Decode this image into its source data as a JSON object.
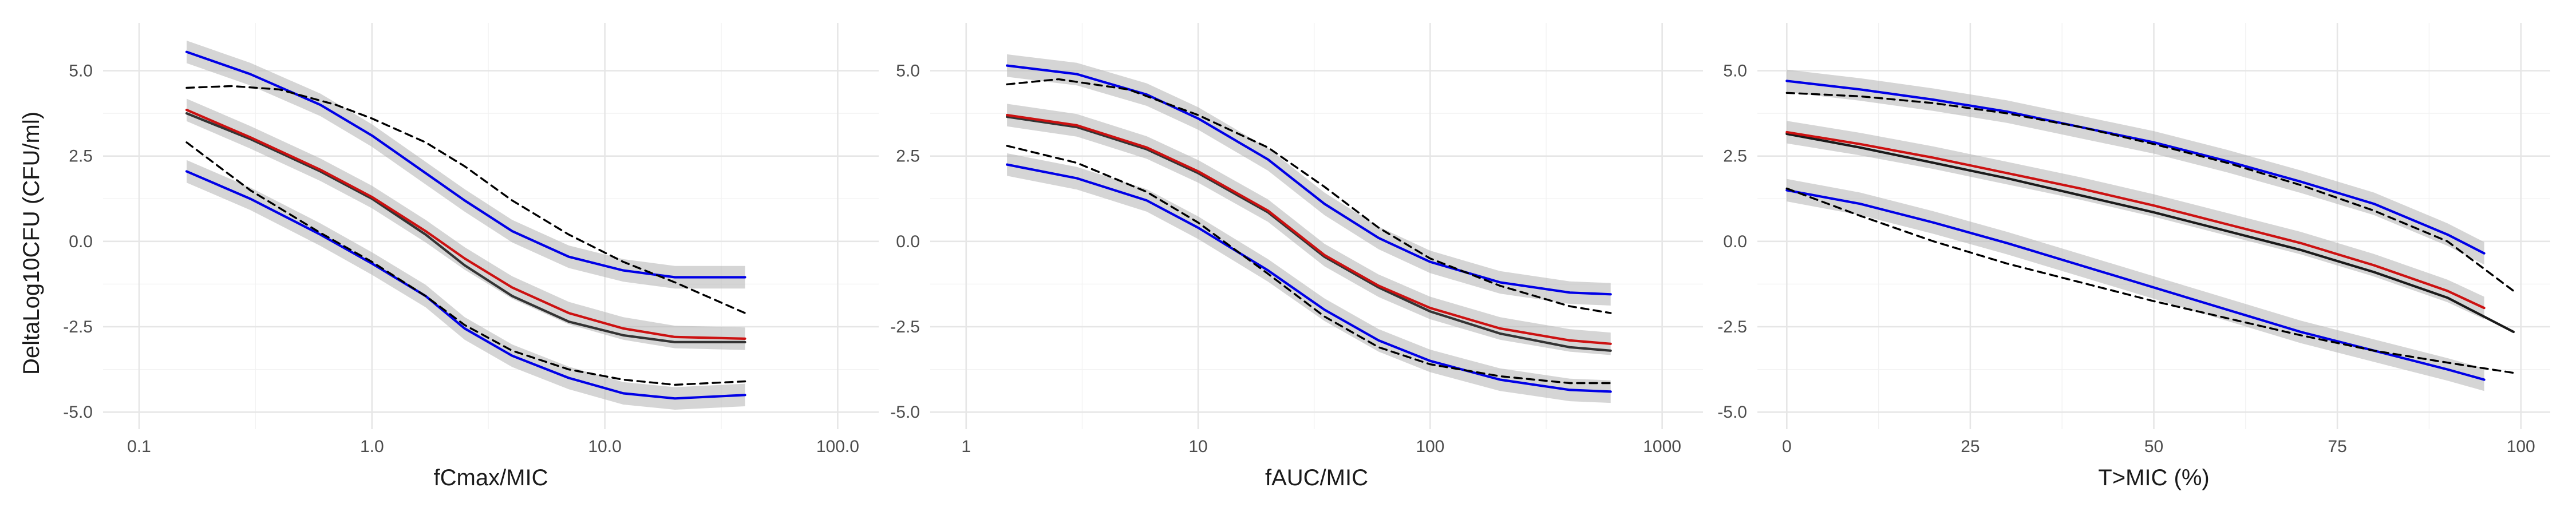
{
  "figure": {
    "ylabel": "DeltaLog10CFU (CFU/ml)"
  },
  "chart_data": [
    {
      "type": "line",
      "xlabel": "fCmax/MIC",
      "xscale": "log",
      "xlim": [
        0.07,
        150
      ],
      "ylim": [
        -5.5,
        6.4
      ],
      "x_ticks": [
        0.1,
        1,
        10,
        100
      ],
      "x_tick_labels": [
        "0.1",
        "1.0",
        "10.0",
        "100.0"
      ],
      "y_ticks": [
        -5,
        -2.5,
        0,
        2.5,
        5
      ],
      "y_tick_labels": [
        "-5.0",
        "-2.5",
        "0.0",
        "2.5",
        "5.0"
      ],
      "grid": true,
      "series": [
        {
          "role": "upper-ci",
          "color": "#0000e6",
          "dashed": false,
          "band": true,
          "x": [
            0.16,
            0.3,
            0.6,
            1.0,
            1.7,
            2.5,
            4,
            7,
            12,
            20,
            40
          ],
          "y": [
            5.55,
            4.9,
            4.0,
            3.1,
            2.0,
            1.2,
            0.3,
            -0.45,
            -0.85,
            -1.05,
            -1.05
          ]
        },
        {
          "role": "observed",
          "color": "#cc1111",
          "dashed": false,
          "band": true,
          "x": [
            0.16,
            0.3,
            0.6,
            1.0,
            1.7,
            2.5,
            4,
            7,
            12,
            20,
            40
          ],
          "y": [
            3.85,
            3.05,
            2.1,
            1.3,
            0.3,
            -0.5,
            -1.35,
            -2.1,
            -2.55,
            -2.8,
            -2.85
          ]
        },
        {
          "role": "fitted",
          "color": "#333333",
          "dashed": false,
          "band": false,
          "x": [
            0.16,
            0.3,
            0.6,
            1.0,
            1.7,
            2.5,
            4,
            7,
            12,
            20,
            40
          ],
          "y": [
            3.75,
            3.0,
            2.05,
            1.25,
            0.2,
            -0.7,
            -1.6,
            -2.35,
            -2.75,
            -2.95,
            -2.95
          ]
        },
        {
          "role": "lower-ci",
          "color": "#0000e6",
          "dashed": false,
          "band": true,
          "x": [
            0.16,
            0.3,
            0.6,
            1.0,
            1.7,
            2.5,
            4,
            7,
            12,
            20,
            40
          ],
          "y": [
            2.05,
            1.25,
            0.2,
            -0.65,
            -1.6,
            -2.55,
            -3.35,
            -4.0,
            -4.45,
            -4.6,
            -4.5
          ]
        },
        {
          "role": "upper-pred",
          "color": "#000000",
          "dashed": true,
          "band": false,
          "x": [
            0.16,
            0.25,
            0.4,
            0.7,
            1.0,
            1.7,
            2.5,
            4,
            7,
            12,
            20,
            40
          ],
          "y": [
            4.5,
            4.55,
            4.45,
            4.0,
            3.6,
            2.9,
            2.2,
            1.2,
            0.2,
            -0.6,
            -1.2,
            -2.1
          ]
        },
        {
          "role": "lower-pred",
          "color": "#000000",
          "dashed": true,
          "band": false,
          "x": [
            0.16,
            0.3,
            0.6,
            1.0,
            1.7,
            2.5,
            4,
            7,
            12,
            20,
            40
          ],
          "y": [
            2.9,
            1.5,
            0.25,
            -0.6,
            -1.6,
            -2.45,
            -3.2,
            -3.75,
            -4.05,
            -4.2,
            -4.1
          ]
        }
      ]
    },
    {
      "type": "line",
      "xlabel": "fAUC/MIC",
      "xscale": "log",
      "xlim": [
        0.7,
        1500
      ],
      "ylim": [
        -5.5,
        6.4
      ],
      "x_ticks": [
        1,
        10,
        100,
        1000
      ],
      "x_tick_labels": [
        "1",
        "10",
        "100",
        "1000"
      ],
      "y_ticks": [
        -5,
        -2.5,
        0,
        2.5,
        5
      ],
      "y_tick_labels": [
        "-5.0",
        "-2.5",
        "0.0",
        "2.5",
        "5.0"
      ],
      "grid": true,
      "series": [
        {
          "role": "upper-ci",
          "color": "#0000e6",
          "dashed": false,
          "band": true,
          "x": [
            1.5,
            3,
            6,
            10,
            20,
            35,
            60,
            100,
            200,
            400,
            600
          ],
          "y": [
            5.15,
            4.9,
            4.3,
            3.6,
            2.4,
            1.1,
            0.1,
            -0.6,
            -1.2,
            -1.5,
            -1.55
          ]
        },
        {
          "role": "observed",
          "color": "#cc1111",
          "dashed": false,
          "band": true,
          "x": [
            1.5,
            3,
            6,
            10,
            20,
            35,
            60,
            100,
            200,
            400,
            600
          ],
          "y": [
            3.7,
            3.4,
            2.75,
            2.05,
            0.9,
            -0.4,
            -1.3,
            -1.95,
            -2.55,
            -2.9,
            -3.0
          ]
        },
        {
          "role": "fitted",
          "color": "#333333",
          "dashed": false,
          "band": false,
          "x": [
            1.5,
            3,
            6,
            10,
            20,
            35,
            60,
            100,
            200,
            400,
            600
          ],
          "y": [
            3.65,
            3.35,
            2.7,
            2.0,
            0.85,
            -0.45,
            -1.35,
            -2.05,
            -2.7,
            -3.1,
            -3.2
          ]
        },
        {
          "role": "lower-ci",
          "color": "#0000e6",
          "dashed": false,
          "band": true,
          "x": [
            1.5,
            3,
            6,
            10,
            20,
            35,
            60,
            100,
            200,
            400,
            600
          ],
          "y": [
            2.25,
            1.85,
            1.2,
            0.4,
            -0.85,
            -2.0,
            -2.9,
            -3.5,
            -4.05,
            -4.35,
            -4.4
          ]
        },
        {
          "role": "upper-pred",
          "color": "#000000",
          "dashed": true,
          "band": false,
          "x": [
            1.5,
            2.5,
            5,
            10,
            20,
            35,
            60,
            100,
            200,
            400,
            600
          ],
          "y": [
            4.6,
            4.75,
            4.45,
            3.7,
            2.75,
            1.6,
            0.4,
            -0.5,
            -1.3,
            -1.9,
            -2.1
          ]
        },
        {
          "role": "lower-pred",
          "color": "#000000",
          "dashed": true,
          "band": false,
          "x": [
            1.5,
            3,
            6,
            10,
            20,
            35,
            60,
            100,
            200,
            400,
            600
          ],
          "y": [
            2.8,
            2.3,
            1.45,
            0.55,
            -0.95,
            -2.2,
            -3.1,
            -3.6,
            -3.95,
            -4.15,
            -4.15
          ]
        }
      ]
    },
    {
      "type": "line",
      "xlabel": "T>MIC (%)",
      "xscale": "linear",
      "xlim": [
        -4,
        104
      ],
      "ylim": [
        -5.5,
        6.4
      ],
      "x_ticks": [
        0,
        25,
        50,
        75,
        100
      ],
      "x_tick_labels": [
        "0",
        "25",
        "50",
        "75",
        "100"
      ],
      "y_ticks": [
        -5,
        -2.5,
        0,
        2.5,
        5
      ],
      "y_tick_labels": [
        "-5.0",
        "-2.5",
        "0.0",
        "2.5",
        "5.0"
      ],
      "grid": true,
      "series": [
        {
          "role": "upper-ci",
          "color": "#0000e6",
          "dashed": false,
          "band": true,
          "x": [
            0,
            10,
            20,
            30,
            40,
            50,
            60,
            70,
            80,
            90,
            95
          ],
          "y": [
            4.7,
            4.45,
            4.15,
            3.8,
            3.35,
            2.9,
            2.35,
            1.75,
            1.1,
            0.2,
            -0.35
          ]
        },
        {
          "role": "observed",
          "color": "#cc1111",
          "dashed": false,
          "band": true,
          "x": [
            0,
            10,
            20,
            30,
            40,
            50,
            60,
            70,
            80,
            90,
            95
          ],
          "y": [
            3.2,
            2.85,
            2.45,
            2.0,
            1.55,
            1.05,
            0.5,
            -0.05,
            -0.7,
            -1.45,
            -1.95
          ]
        },
        {
          "role": "fitted",
          "color": "#1a1a1a",
          "dashed": false,
          "band": false,
          "x": [
            0,
            10,
            20,
            30,
            40,
            50,
            60,
            70,
            80,
            90,
            99
          ],
          "y": [
            3.15,
            2.75,
            2.3,
            1.85,
            1.35,
            0.85,
            0.3,
            -0.25,
            -0.9,
            -1.65,
            -2.65
          ]
        },
        {
          "role": "lower-ci",
          "color": "#0000e6",
          "dashed": false,
          "band": true,
          "x": [
            0,
            10,
            20,
            30,
            40,
            50,
            60,
            70,
            80,
            90,
            95
          ],
          "y": [
            1.5,
            1.1,
            0.55,
            -0.05,
            -0.7,
            -1.35,
            -2.0,
            -2.65,
            -3.2,
            -3.75,
            -4.05
          ]
        },
        {
          "role": "upper-pred",
          "color": "#000000",
          "dashed": true,
          "band": false,
          "x": [
            0,
            10,
            20,
            30,
            40,
            50,
            60,
            70,
            80,
            90,
            99
          ],
          "y": [
            4.35,
            4.25,
            4.05,
            3.75,
            3.35,
            2.85,
            2.3,
            1.65,
            0.9,
            0.0,
            -1.45
          ]
        },
        {
          "role": "lower-pred",
          "color": "#000000",
          "dashed": true,
          "band": false,
          "x": [
            0,
            10,
            20,
            30,
            40,
            50,
            60,
            70,
            80,
            90,
            99
          ],
          "y": [
            1.55,
            0.75,
            0.0,
            -0.65,
            -1.2,
            -1.75,
            -2.25,
            -2.75,
            -3.2,
            -3.55,
            -3.85
          ]
        }
      ]
    }
  ]
}
